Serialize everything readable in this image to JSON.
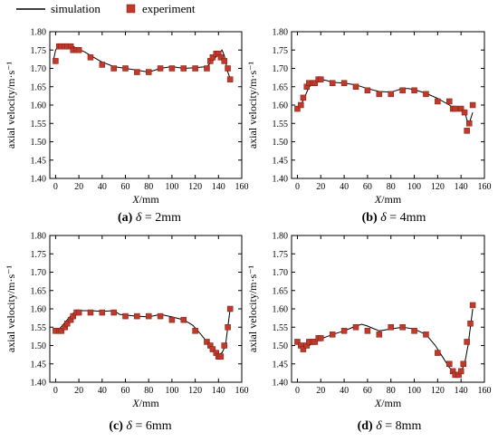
{
  "legend": {
    "simulation": "simulation",
    "experiment": "experiment"
  },
  "colors": {
    "line": "#000000",
    "marker_fill": "#c0392b",
    "marker_edge": "#7b1f12"
  },
  "chart_data": [
    {
      "type": "line",
      "caption_letter": "(a)",
      "caption_symbol": "δ",
      "caption_value": " = 2mm",
      "xlabel_sym": "X",
      "xlabel_unit": "/mm",
      "ylabel": "axial velocity/m·s⁻¹",
      "xlim": [
        -5,
        160
      ],
      "ylim": [
        1.4,
        1.8
      ],
      "xticks": [
        0,
        20,
        40,
        60,
        80,
        100,
        120,
        140,
        160
      ],
      "yticks": [
        1.4,
        1.45,
        1.5,
        1.55,
        1.6,
        1.65,
        1.7,
        1.75,
        1.8
      ],
      "series": [
        {
          "name": "simulation",
          "kind": "line",
          "x": [
            -2,
            0,
            2,
            5,
            10,
            15,
            20,
            25,
            30,
            40,
            50,
            60,
            70,
            80,
            90,
            100,
            110,
            120,
            130,
            135,
            140,
            143,
            145,
            148,
            150
          ],
          "y": [
            1.72,
            1.75,
            1.76,
            1.765,
            1.765,
            1.76,
            1.752,
            1.745,
            1.735,
            1.717,
            1.705,
            1.7,
            1.695,
            1.69,
            1.7,
            1.705,
            1.7,
            1.702,
            1.705,
            1.72,
            1.74,
            1.75,
            1.735,
            1.69,
            1.672
          ]
        },
        {
          "name": "experiment",
          "kind": "markers",
          "x": [
            0,
            3,
            5,
            8,
            10,
            13,
            15,
            18,
            20,
            30,
            40,
            50,
            60,
            70,
            80,
            90,
            100,
            110,
            120,
            130,
            133,
            135,
            138,
            140,
            142,
            145,
            148,
            150
          ],
          "y": [
            1.72,
            1.76,
            1.76,
            1.76,
            1.76,
            1.76,
            1.75,
            1.75,
            1.75,
            1.73,
            1.71,
            1.7,
            1.7,
            1.69,
            1.69,
            1.7,
            1.7,
            1.7,
            1.7,
            1.7,
            1.72,
            1.73,
            1.74,
            1.74,
            1.73,
            1.72,
            1.7,
            1.67
          ]
        }
      ]
    },
    {
      "type": "line",
      "caption_letter": "(b)",
      "caption_symbol": "δ",
      "caption_value": " = 4mm",
      "xlabel_sym": "X",
      "xlabel_unit": "/mm",
      "ylabel": "axial velocity/m·s⁻¹",
      "xlim": [
        -5,
        160
      ],
      "ylim": [
        1.4,
        1.8
      ],
      "xticks": [
        0,
        20,
        40,
        60,
        80,
        100,
        120,
        140,
        160
      ],
      "yticks": [
        1.4,
        1.45,
        1.5,
        1.55,
        1.6,
        1.65,
        1.7,
        1.75,
        1.8
      ],
      "series": [
        {
          "name": "simulation",
          "kind": "line",
          "x": [
            0,
            3,
            6,
            10,
            15,
            20,
            25,
            30,
            40,
            50,
            60,
            70,
            80,
            90,
            95,
            100,
            110,
            120,
            130,
            135,
            140,
            143,
            145,
            147,
            150
          ],
          "y": [
            1.59,
            1.6,
            1.62,
            1.65,
            1.662,
            1.67,
            1.667,
            1.662,
            1.66,
            1.655,
            1.645,
            1.637,
            1.635,
            1.645,
            1.645,
            1.642,
            1.632,
            1.618,
            1.6,
            1.59,
            1.59,
            1.585,
            1.56,
            1.55,
            1.58
          ]
        },
        {
          "name": "experiment",
          "kind": "markers",
          "x": [
            0,
            3,
            5,
            8,
            10,
            13,
            15,
            18,
            20,
            30,
            40,
            50,
            60,
            70,
            80,
            90,
            100,
            110,
            120,
            130,
            133,
            135,
            140,
            143,
            145,
            147,
            150
          ],
          "y": [
            1.59,
            1.6,
            1.62,
            1.65,
            1.66,
            1.66,
            1.66,
            1.67,
            1.67,
            1.66,
            1.66,
            1.65,
            1.64,
            1.63,
            1.63,
            1.64,
            1.64,
            1.63,
            1.61,
            1.61,
            1.59,
            1.59,
            1.59,
            1.58,
            1.53,
            1.55,
            1.6
          ]
        }
      ]
    },
    {
      "type": "line",
      "caption_letter": "(c)",
      "caption_symbol": "δ",
      "caption_value": " = 6mm",
      "xlabel_sym": "X",
      "xlabel_unit": "/mm",
      "ylabel": "axial velocity/m·s⁻¹",
      "xlim": [
        -5,
        160
      ],
      "ylim": [
        1.4,
        1.8
      ],
      "xticks": [
        0,
        20,
        40,
        60,
        80,
        100,
        120,
        140,
        160
      ],
      "yticks": [
        1.4,
        1.45,
        1.5,
        1.55,
        1.6,
        1.65,
        1.7,
        1.75,
        1.8
      ],
      "series": [
        {
          "name": "simulation",
          "kind": "line",
          "x": [
            0,
            3,
            6,
            10,
            15,
            20,
            30,
            40,
            50,
            55,
            60,
            70,
            80,
            90,
            100,
            110,
            118,
            125,
            130,
            135,
            140,
            143,
            146,
            150
          ],
          "y": [
            1.54,
            1.545,
            1.555,
            1.57,
            1.588,
            1.595,
            1.595,
            1.593,
            1.595,
            1.585,
            1.583,
            1.58,
            1.578,
            1.585,
            1.578,
            1.57,
            1.555,
            1.53,
            1.51,
            1.495,
            1.475,
            1.48,
            1.5,
            1.6
          ]
        },
        {
          "name": "experiment",
          "kind": "markers",
          "x": [
            0,
            3,
            5,
            8,
            10,
            13,
            15,
            18,
            20,
            30,
            40,
            50,
            60,
            70,
            80,
            90,
            100,
            110,
            120,
            130,
            133,
            135,
            138,
            140,
            142,
            145,
            148,
            150
          ],
          "y": [
            1.54,
            1.54,
            1.54,
            1.55,
            1.56,
            1.57,
            1.58,
            1.59,
            1.59,
            1.59,
            1.59,
            1.59,
            1.58,
            1.58,
            1.58,
            1.58,
            1.57,
            1.57,
            1.54,
            1.51,
            1.5,
            1.49,
            1.48,
            1.47,
            1.47,
            1.5,
            1.55,
            1.6
          ]
        }
      ]
    },
    {
      "type": "line",
      "caption_letter": "(d)",
      "caption_symbol": "δ",
      "caption_value": " = 8mm",
      "xlabel_sym": "X",
      "xlabel_unit": "/mm",
      "ylabel": "axial velocity/m·s⁻¹",
      "xlim": [
        -5,
        160
      ],
      "ylim": [
        1.4,
        1.8
      ],
      "xticks": [
        0,
        20,
        40,
        60,
        80,
        100,
        120,
        140,
        160
      ],
      "yticks": [
        1.4,
        1.45,
        1.5,
        1.55,
        1.6,
        1.65,
        1.7,
        1.75,
        1.8
      ],
      "series": [
        {
          "name": "simulation",
          "kind": "line",
          "x": [
            0,
            3,
            6,
            10,
            15,
            20,
            30,
            40,
            50,
            55,
            60,
            70,
            80,
            90,
            100,
            110,
            118,
            125,
            130,
            135,
            140,
            143,
            146,
            150
          ],
          "y": [
            1.505,
            1.5,
            1.495,
            1.5,
            1.51,
            1.518,
            1.53,
            1.54,
            1.553,
            1.558,
            1.553,
            1.54,
            1.545,
            1.55,
            1.545,
            1.53,
            1.5,
            1.465,
            1.44,
            1.425,
            1.43,
            1.45,
            1.5,
            1.6
          ]
        },
        {
          "name": "experiment",
          "kind": "markers",
          "x": [
            0,
            3,
            5,
            8,
            10,
            13,
            15,
            18,
            20,
            30,
            40,
            50,
            60,
            70,
            80,
            90,
            100,
            110,
            120,
            130,
            133,
            135,
            138,
            140,
            142,
            145,
            148,
            150
          ],
          "y": [
            1.51,
            1.5,
            1.49,
            1.5,
            1.51,
            1.51,
            1.51,
            1.52,
            1.52,
            1.53,
            1.54,
            1.55,
            1.54,
            1.53,
            1.55,
            1.55,
            1.54,
            1.53,
            1.48,
            1.45,
            1.43,
            1.42,
            1.42,
            1.43,
            1.45,
            1.51,
            1.56,
            1.61
          ]
        }
      ]
    }
  ]
}
